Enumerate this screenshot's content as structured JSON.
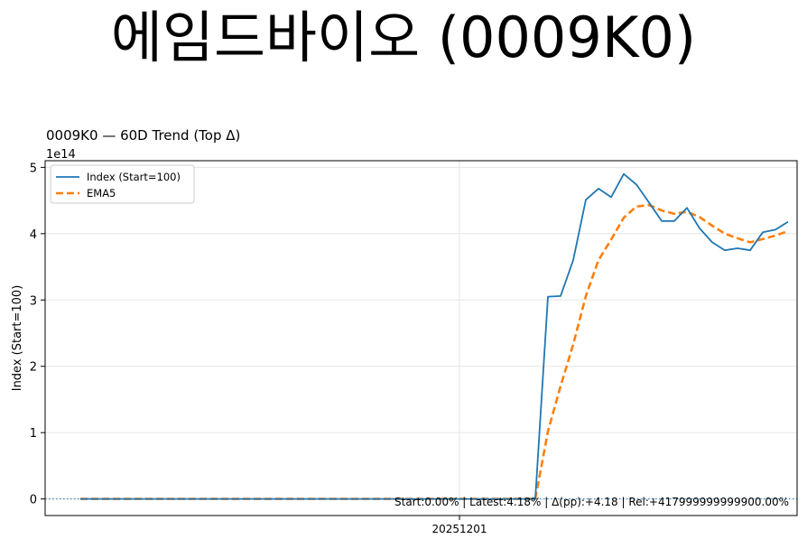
{
  "page_title": "에임드바이오 (0009K0)",
  "chart_data": {
    "type": "line",
    "title": "0009K0 — 60D Trend (Top Δ)",
    "ylabel": "Index (Start=100)",
    "xlabel": "",
    "y_scale_label": "1e14",
    "y_multiplier": 100000000000000.0,
    "ylim": [
      -0.25,
      5.1
    ],
    "y_ticks": [
      0,
      1,
      2,
      3,
      4,
      5
    ],
    "x_tick_labels": [
      {
        "index": 30,
        "label": "20251201"
      }
    ],
    "grid": true,
    "legend": "top-left",
    "baseline": {
      "value": 0,
      "style": "dotted",
      "color": "#1f77b4"
    },
    "annotation": "Start:0.00% | Latest:4.18% | Δ(pp):+4.18 | Rel:+417999999999900.00%",
    "series": [
      {
        "name": "Index (Start=100)",
        "color": "#1f77b4",
        "style": "solid",
        "values": [
          0,
          0,
          0,
          0,
          0,
          0,
          0,
          0,
          0,
          0,
          0,
          0,
          0,
          0,
          0,
          0,
          0,
          0,
          0,
          0,
          0,
          0,
          0,
          0,
          0,
          0,
          0,
          0,
          0,
          0,
          0,
          0,
          0,
          0,
          0,
          0,
          0,
          3.05,
          3.06,
          3.6,
          4.51,
          4.68,
          4.55,
          4.9,
          4.74,
          4.47,
          4.19,
          4.19,
          4.39,
          4.08,
          3.87,
          3.75,
          3.78,
          3.75,
          4.02,
          4.06,
          4.18
        ]
      },
      {
        "name": "EMA5",
        "color": "#ff7f0e",
        "style": "dashed",
        "values": [
          0,
          0,
          0,
          0,
          0,
          0,
          0,
          0,
          0,
          0,
          0,
          0,
          0,
          0,
          0,
          0,
          0,
          0,
          0,
          0,
          0,
          0,
          0,
          0,
          0,
          0,
          0,
          0,
          0,
          0,
          0,
          0,
          0,
          0,
          0,
          0,
          0,
          1.02,
          1.7,
          2.33,
          3.06,
          3.6,
          3.91,
          4.24,
          4.41,
          4.43,
          4.35,
          4.3,
          4.33,
          4.25,
          4.12,
          4.0,
          3.93,
          3.87,
          3.92,
          3.97,
          4.04
        ]
      }
    ]
  }
}
